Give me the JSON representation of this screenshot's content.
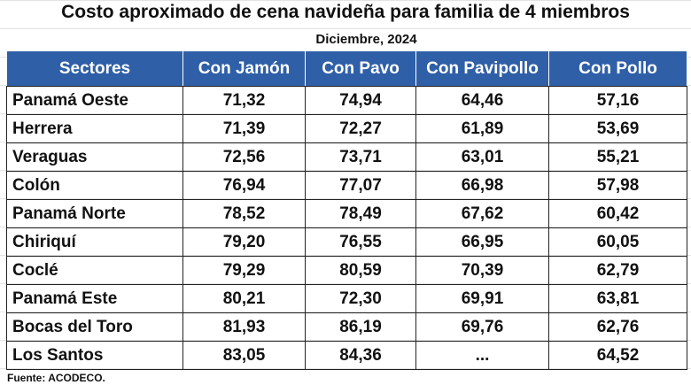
{
  "header": {
    "title": "Costo aproximado de cena navideña para familia de 4 miembros",
    "subtitle": "Diciembre, 2024"
  },
  "table": {
    "columns": [
      "Sectores",
      "Con Jamón",
      "Con Pavo",
      "Con Pavipollo",
      "Con Pollo"
    ],
    "rows": [
      [
        "Panamá Oeste",
        "71,32",
        "74,94",
        "64,46",
        "57,16"
      ],
      [
        "Herrera",
        "71,39",
        "72,27",
        "61,89",
        "53,69"
      ],
      [
        "Veraguas",
        "72,56",
        "73,71",
        "63,01",
        "55,21"
      ],
      [
        "Colón",
        "76,94",
        "77,07",
        "66,98",
        "57,98"
      ],
      [
        "Panamá Norte",
        "78,52",
        "78,49",
        "67,62",
        "60,42"
      ],
      [
        "Chiriquí",
        "79,20",
        "76,55",
        "66,95",
        "60,05"
      ],
      [
        "Coclé",
        "79,29",
        "80,59",
        "70,39",
        "62,79"
      ],
      [
        "Panamá Este",
        "80,21",
        "72,30",
        "69,91",
        "63,81"
      ],
      [
        "Bocas del Toro",
        "81,93",
        "86,19",
        "69,76",
        "62,76"
      ],
      [
        "Los Santos",
        "83,05",
        "84,36",
        "...",
        "64,52"
      ]
    ]
  },
  "footer": {
    "source": "Fuente: ACODECO."
  }
}
